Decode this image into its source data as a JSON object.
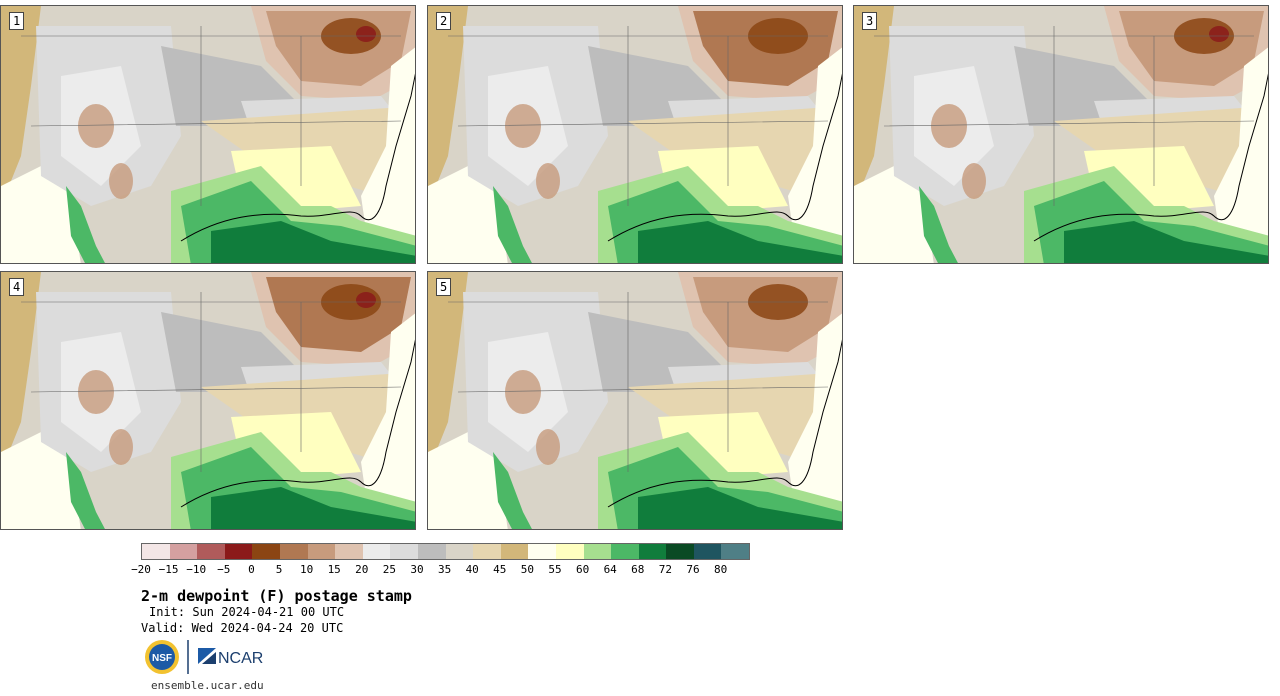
{
  "panels": [
    {
      "label": "1"
    },
    {
      "label": "2"
    },
    {
      "label": "3"
    },
    {
      "label": "4"
    },
    {
      "label": "5"
    }
  ],
  "colorbar": {
    "colors": [
      "#f3e6e6",
      "#d4a0a0",
      "#b05b5b",
      "#8b1a1a",
      "#8b4513",
      "#b07852",
      "#c79b7d",
      "#dfc3b0",
      "#ececec",
      "#dcdcdc",
      "#bdbdbd",
      "#d9d4c8",
      "#e6d6b0",
      "#d2b77a",
      "#fffff0",
      "#ffffc0",
      "#a6df8f",
      "#4cb866",
      "#107d3c",
      "#0a4a24",
      "#1f5560",
      "#4f7f86"
    ],
    "tick_labels": [
      "−20",
      "−15",
      "−10",
      "−5",
      "0",
      "5",
      "10",
      "15",
      "20",
      "25",
      "30",
      "35",
      "40",
      "45",
      "50",
      "55",
      "60",
      "64",
      "68",
      "72",
      "76",
      "80"
    ]
  },
  "title": "2-m dewpoint (F) postage stamp",
  "init": "Init: Sun 2024-04-21 00 UTC",
  "valid": "Valid: Wed 2024-04-24 20 UTC",
  "logos": {
    "nsf": "NSF",
    "ncar": "NCAR"
  },
  "site": "ensemble.ucar.edu"
}
